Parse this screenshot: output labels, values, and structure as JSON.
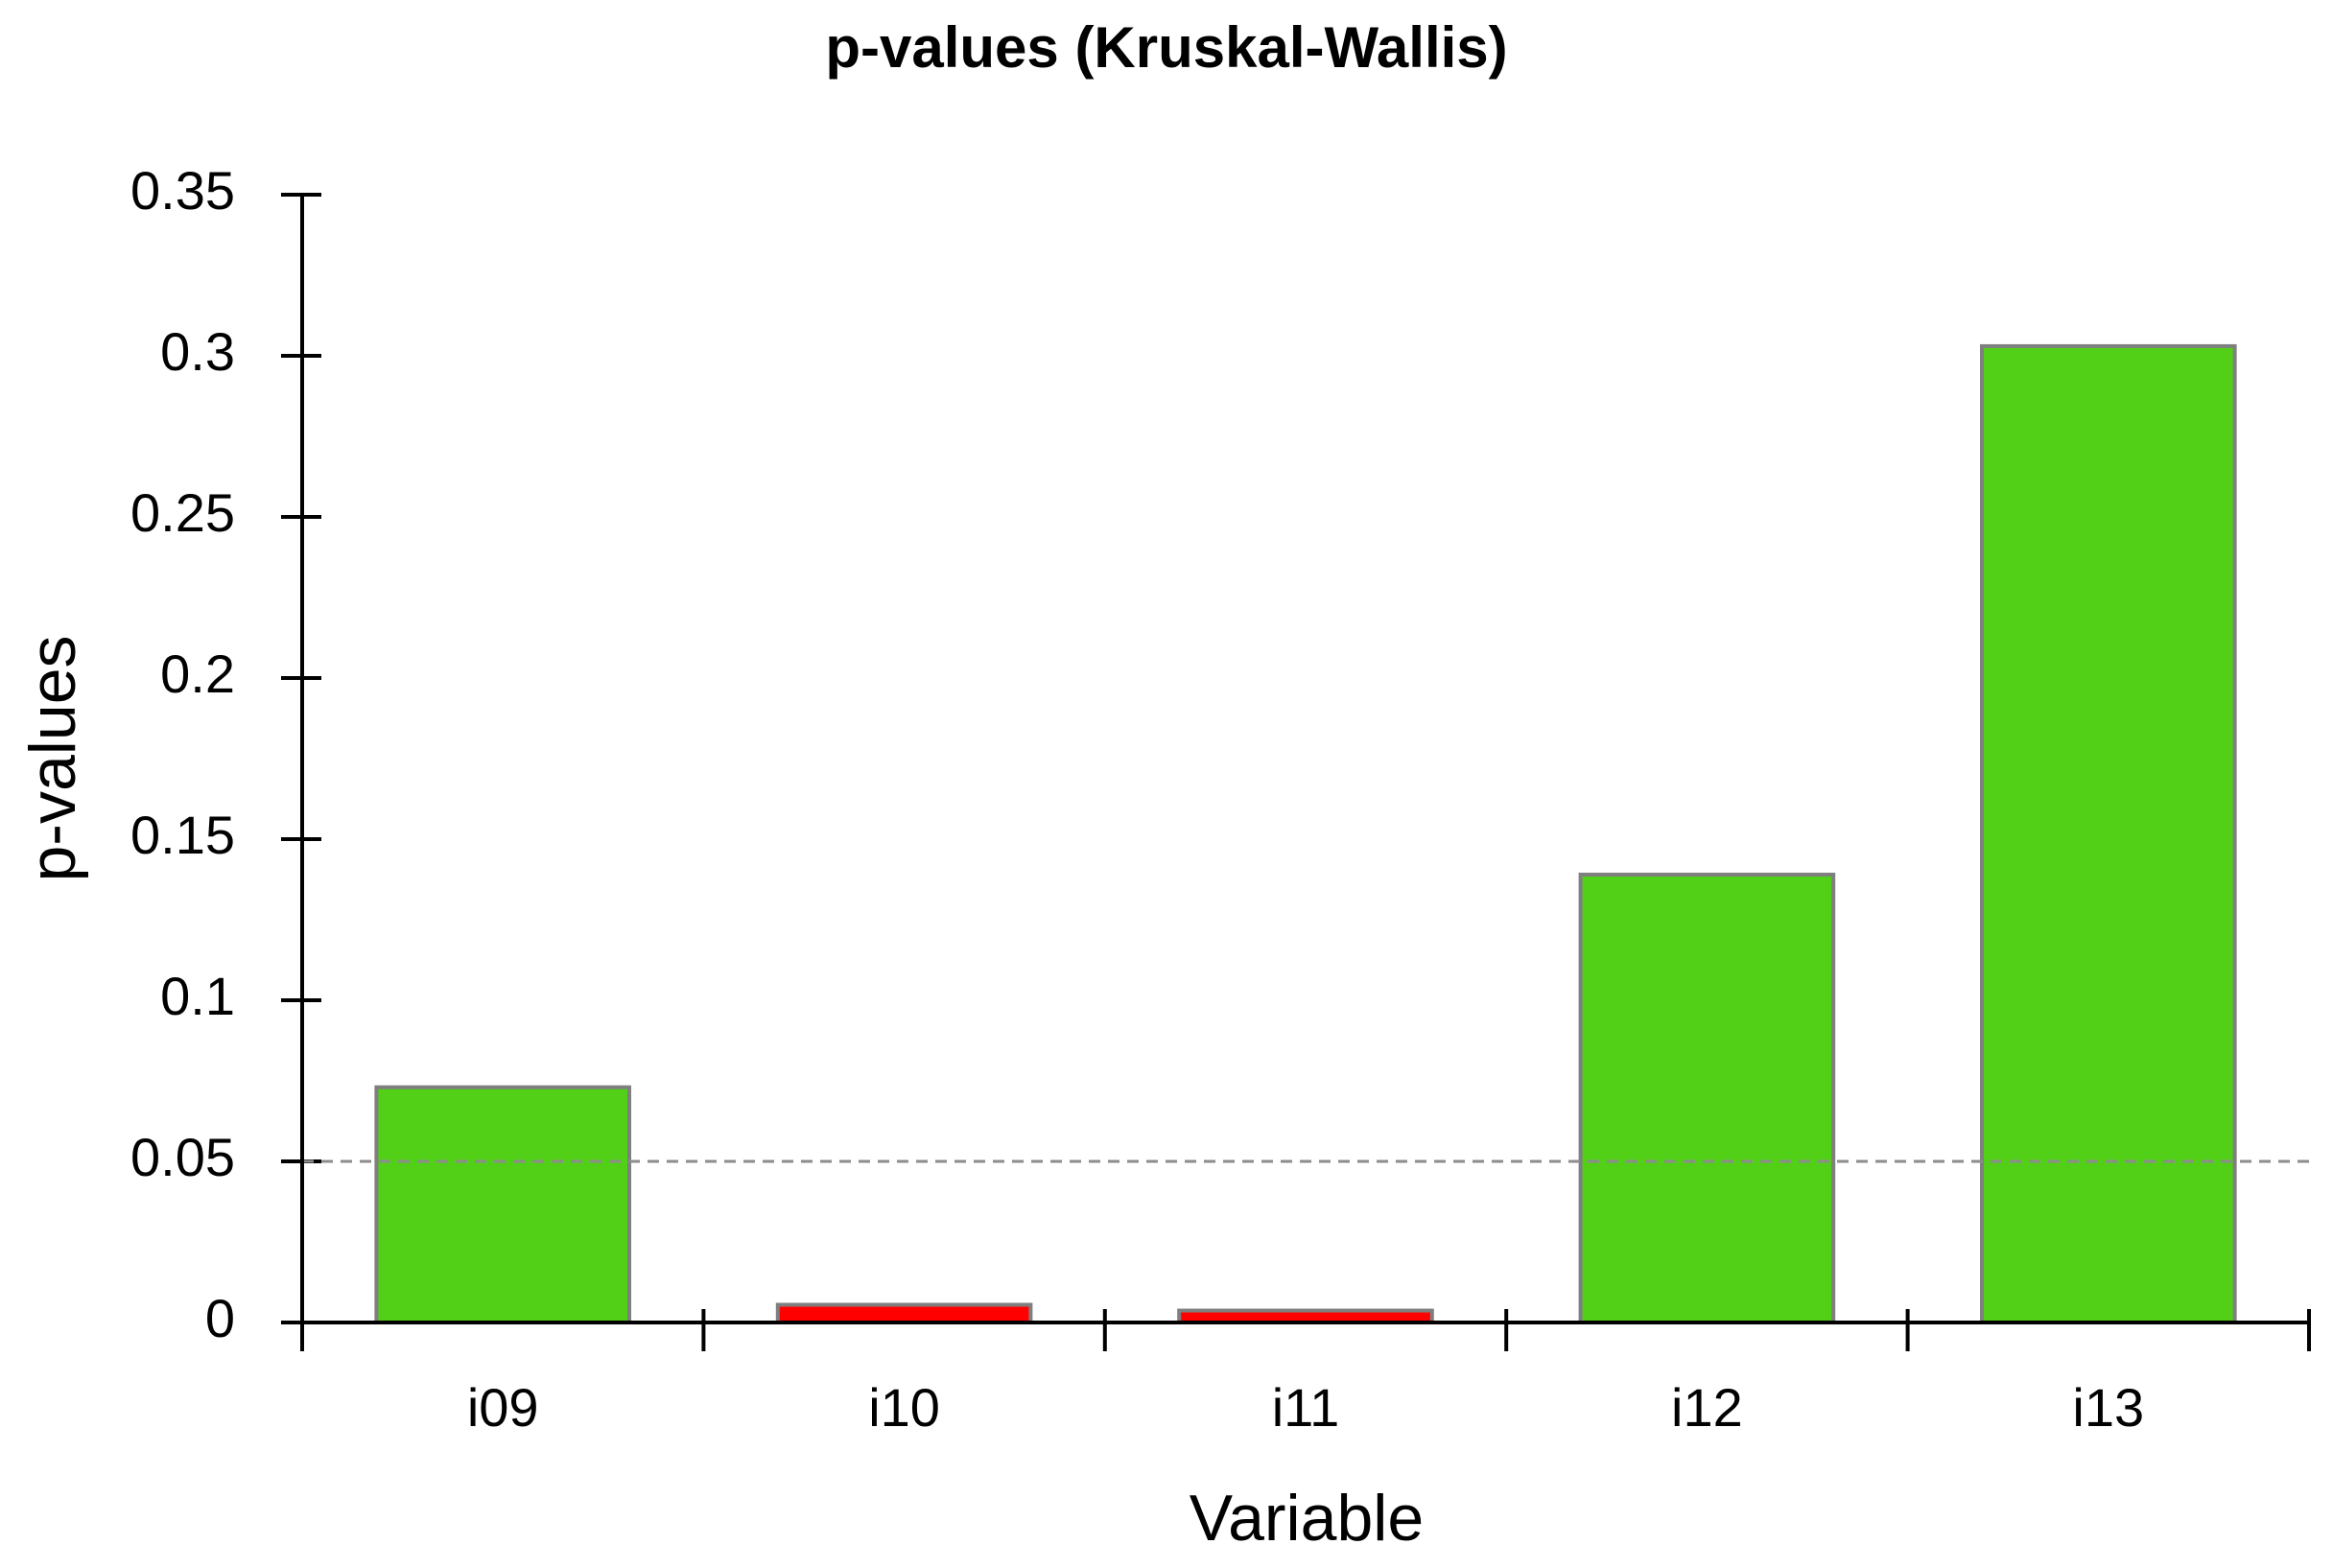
{
  "chart_data": {
    "type": "bar",
    "title": "p-values (Kruskal-Wallis)",
    "x_label": "Variable",
    "y_label": "p-values",
    "categories": [
      "i09",
      "i10",
      "i11",
      "i12",
      "i13"
    ],
    "values": [
      0.073,
      0.0055,
      0.0037,
      0.139,
      0.303
    ],
    "colors": [
      "#52d017",
      "#ff0000",
      "#ff0000",
      "#52d017",
      "#52d017"
    ],
    "reference_line": 0.05,
    "ylim": [
      0,
      0.35
    ],
    "yticks": [
      0,
      0.05,
      0.1,
      0.15,
      0.2,
      0.25,
      0.3,
      0.35
    ]
  }
}
